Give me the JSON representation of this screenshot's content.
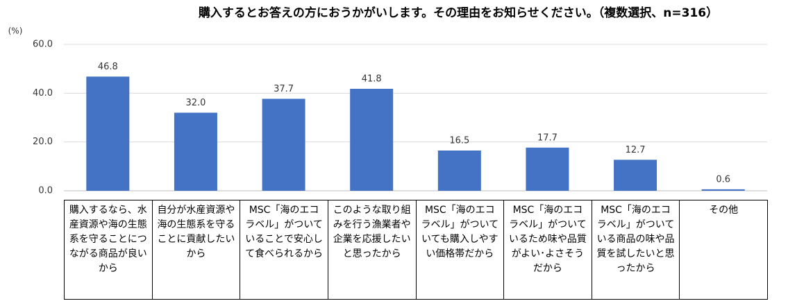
{
  "chart_data": {
    "type": "bar",
    "title": "購入するとお答えの方におうかがいします。その理由をお知らせください。（複数選択、n=316）",
    "y_unit": "(%)",
    "categories": [
      "購入するなら、水産資源や海の生態系を守ることにつながる商品が良いから",
      "自分が水産資源や海の生態系を守ることに貢献したいから",
      "MSC「海のエコラベル」がついていることで安心して食べられるから",
      "このような取り組みを行う漁業者や企業を応援したいと思ったから",
      "MSC「海のエコラベル」がついていても購入しやすい価格帯だから",
      "MSC「海のエコラベル」がついているため味や品質がよい･よさそうだから",
      "MSC「海のエコラベル」がついている商品の味や品質を試したいと思ったから",
      "その他"
    ],
    "values": [
      46.8,
      32.0,
      37.7,
      41.8,
      16.5,
      17.7,
      12.7,
      0.6
    ],
    "value_labels": [
      "46.8",
      "32.0",
      "37.7",
      "41.8",
      "16.5",
      "17.7",
      "12.7",
      "0.6"
    ],
    "color": "#4472c4",
    "ylim": [
      0,
      60
    ],
    "yticks": [
      {
        "value": 0,
        "label": "0.0"
      },
      {
        "value": 20,
        "label": "20.0"
      },
      {
        "value": 40,
        "label": "40.0"
      },
      {
        "value": 60,
        "label": "60.0"
      }
    ],
    "grid": true
  }
}
